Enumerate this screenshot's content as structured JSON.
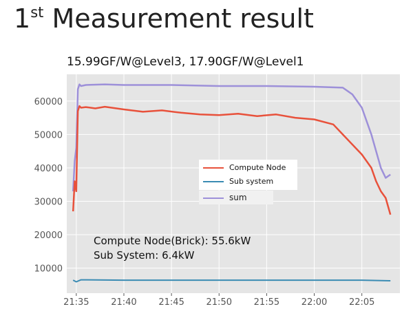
{
  "slide": {
    "title_main": "1",
    "title_sup": "st",
    "title_rest": " Measurement result",
    "subtitle": "15.99GF/W@Level3, 17.90GF/W@Level1"
  },
  "chart_data": {
    "type": "line",
    "title": "",
    "xlabel": "",
    "ylabel": "",
    "x_ticks": [
      "21:35",
      "21:40",
      "21:45",
      "21:50",
      "21:55",
      "22:00",
      "22:05"
    ],
    "x_range": [
      "21:34",
      "22:09"
    ],
    "y_ticks": [
      10000,
      20000,
      30000,
      40000,
      50000,
      60000
    ],
    "y_range": [
      2500,
      68000
    ],
    "grid": true,
    "legend_position": "center",
    "series": [
      {
        "name": "Compute Node",
        "color": "#e8513b",
        "time": [
          "21:34:40",
          "21:34:50",
          "21:35:00",
          "21:35:10",
          "21:35:20",
          "21:35:30",
          "21:36:00",
          "21:37:00",
          "21:38:00",
          "21:40:00",
          "21:42:00",
          "21:44:00",
          "21:46:00",
          "21:48:00",
          "21:50:00",
          "21:52:00",
          "21:54:00",
          "21:56:00",
          "21:58:00",
          "22:00:00",
          "22:02:00",
          "22:03:00",
          "22:04:00",
          "22:05:00",
          "22:06:00",
          "22:06:30",
          "22:07:00",
          "22:07:30",
          "22:08:00"
        ],
        "values": [
          27000,
          36000,
          33000,
          57000,
          58500,
          58000,
          58200,
          57800,
          58300,
          57500,
          56800,
          57200,
          56500,
          56000,
          55800,
          56200,
          55500,
          56000,
          55000,
          54500,
          53000,
          50000,
          47000,
          44000,
          40000,
          36000,
          33000,
          31000,
          26000
        ]
      },
      {
        "name": "Sub system",
        "color": "#3a8bb3",
        "time": [
          "21:34:40",
          "21:35:00",
          "21:35:30",
          "21:36:00",
          "21:40:00",
          "21:50:00",
          "22:00:00",
          "22:05:00",
          "22:08:00"
        ],
        "values": [
          6400,
          5900,
          6500,
          6500,
          6400,
          6400,
          6400,
          6400,
          6200
        ]
      },
      {
        "name": "sum",
        "color": "#9d90d9",
        "time": [
          "21:34:40",
          "21:34:50",
          "21:35:00",
          "21:35:10",
          "21:35:20",
          "21:35:30",
          "21:36:00",
          "21:38:00",
          "21:40:00",
          "21:45:00",
          "21:50:00",
          "21:55:00",
          "22:00:00",
          "22:03:00",
          "22:04:00",
          "22:05:00",
          "22:06:00",
          "22:06:30",
          "22:07:00",
          "22:07:30",
          "22:08:00"
        ],
        "values": [
          33000,
          42000,
          46000,
          63500,
          65000,
          64500,
          64800,
          65000,
          64800,
          64800,
          64500,
          64500,
          64300,
          64000,
          62000,
          58000,
          50000,
          45000,
          40000,
          37000,
          38000
        ]
      }
    ],
    "annotations": [
      "Compute Node(Brick): 55.6kW",
      "Sub System: 6.4kW"
    ],
    "legend_extra": "sum"
  }
}
